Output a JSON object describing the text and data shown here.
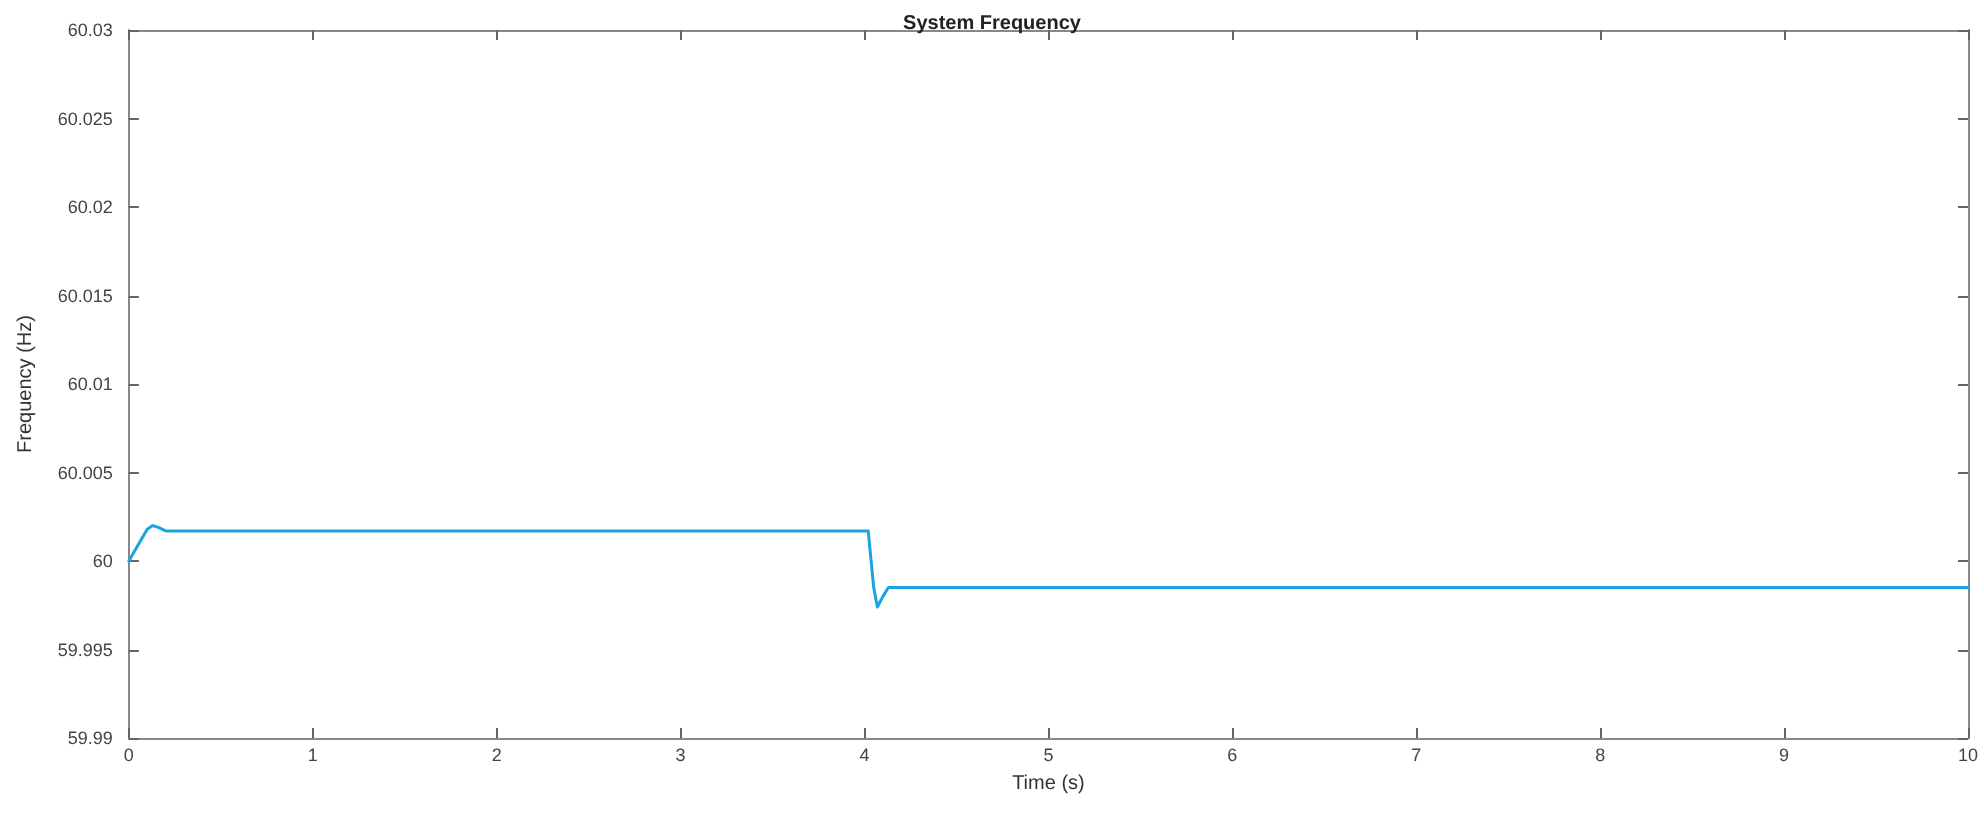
{
  "chart_data": {
    "type": "line",
    "title": "System Frequency",
    "xlabel": "Time (s)",
    "ylabel": "Frequency (Hz)",
    "x": [
      0,
      0.05,
      0.1,
      0.13,
      0.16,
      0.2,
      1,
      2,
      3,
      4,
      4.02,
      4.05,
      4.07,
      4.1,
      4.13,
      5,
      6,
      7,
      8,
      9,
      10
    ],
    "series": [
      {
        "color": "#1aa3e0",
        "values": [
          60,
          60.0009,
          60.0018,
          60.002,
          60.0019,
          60.0017,
          60.0017,
          60.0017,
          60.0017,
          60.0017,
          60.0017,
          59.9985,
          59.9974,
          59.998,
          59.9985,
          59.9985,
          59.9985,
          59.9985,
          59.9985,
          59.9985,
          59.9985
        ]
      }
    ],
    "xlim": [
      0,
      10
    ],
    "xticks": [
      0,
      1,
      2,
      3,
      4,
      5,
      6,
      7,
      8,
      9,
      10
    ],
    "ylim": [
      59.99,
      60.03
    ],
    "yticks": [
      59.99,
      59.995,
      60,
      60.005,
      60.01,
      60.015,
      60.02,
      60.025,
      60.03
    ],
    "grid": false,
    "marker": "none",
    "line_style": "solid"
  }
}
